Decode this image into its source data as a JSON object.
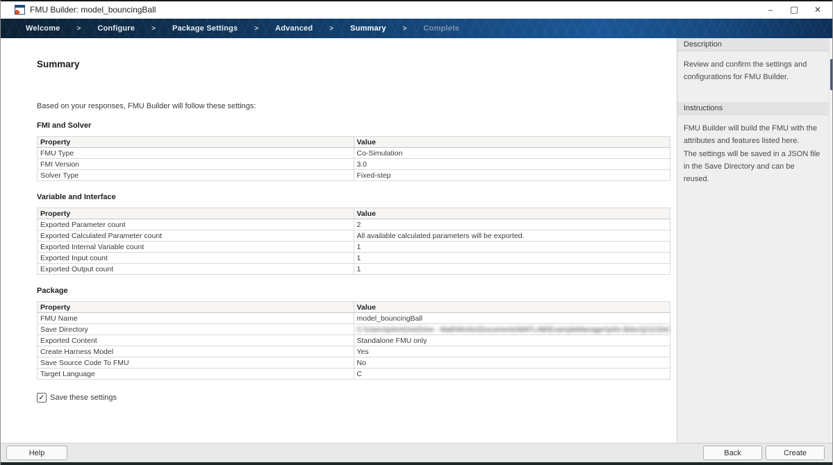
{
  "window": {
    "title": "FMU Builder: model_bouncingBall",
    "controls": {
      "minimize_glyph": "–",
      "maximize_glyph": "▢",
      "close_glyph": "✕"
    }
  },
  "nav": {
    "separator": ">",
    "steps": [
      {
        "label": "Welcome",
        "state": "done"
      },
      {
        "label": "Configure",
        "state": "done"
      },
      {
        "label": "Package Settings",
        "state": "done"
      },
      {
        "label": "Advanced",
        "state": "done"
      },
      {
        "label": "Summary",
        "state": "active"
      },
      {
        "label": "Complete",
        "state": "upcoming"
      }
    ]
  },
  "main": {
    "heading": "Summary",
    "intro": "Based on your responses, FMU Builder will follow these settings:",
    "sections": [
      {
        "title": "FMI and Solver",
        "columns": [
          "Property",
          "Value"
        ],
        "rows": [
          [
            "FMU Type",
            "Co-Simulation"
          ],
          [
            "FMI Version",
            "3.0"
          ],
          [
            "Solver Type",
            "Fixed-step"
          ]
        ],
        "blurred_rows": []
      },
      {
        "title": "Variable and Interface",
        "columns": [
          "Property",
          "Value"
        ],
        "rows": [
          [
            "Exported Parameter count",
            "2"
          ],
          [
            "Exported Calculated Parameter count",
            "All available calculated parameters will be exported."
          ],
          [
            "Exported Internal Variable count",
            "1"
          ],
          [
            "Exported Input count",
            "1"
          ],
          [
            "Exported Output count",
            "1"
          ]
        ],
        "blurred_rows": []
      },
      {
        "title": "Package",
        "columns": [
          "Property",
          "Value"
        ],
        "rows": [
          [
            "FMU Name",
            "model_bouncingBall"
          ],
          [
            "Save Directory",
            "C:\\Users\\john\\OneDrive - MathWorks\\Documents\\MATLAB\\ExampleManager\\john.Bdoc\\j2113343\\mbuilder_ex36..."
          ],
          [
            "Exported Content",
            "Standalone FMU only"
          ],
          [
            "Create Harness Model",
            "Yes"
          ],
          [
            "Save Source Code To FMU",
            "No"
          ],
          [
            "Target Language",
            "C"
          ]
        ],
        "blurred_rows": [
          1
        ]
      }
    ],
    "save_settings_checkbox": {
      "label": "Save these settings",
      "checked": true,
      "check_glyph": "✓"
    }
  },
  "sidebar": {
    "panels": [
      {
        "title": "Description",
        "body": "Review and confirm the settings and configurations for FMU Builder."
      },
      {
        "title": "Instructions",
        "body": "FMU Builder will build the FMU with the attributes and features listed here.\nThe settings will be saved in a JSON file in the Save Directory and can be reused."
      }
    ]
  },
  "footer": {
    "help_label": "Help",
    "back_label": "Back",
    "create_label": "Create"
  },
  "colors": {
    "nav_dark_navy": "#0c2134",
    "nav_blue": "#1b5796",
    "sidebar_bg": "#efefef",
    "footer_bg": "#e9e9e9",
    "table_border": "#9c9c9c",
    "icon_orange": "#d9532b",
    "icon_blue": "#1d4a7a"
  }
}
